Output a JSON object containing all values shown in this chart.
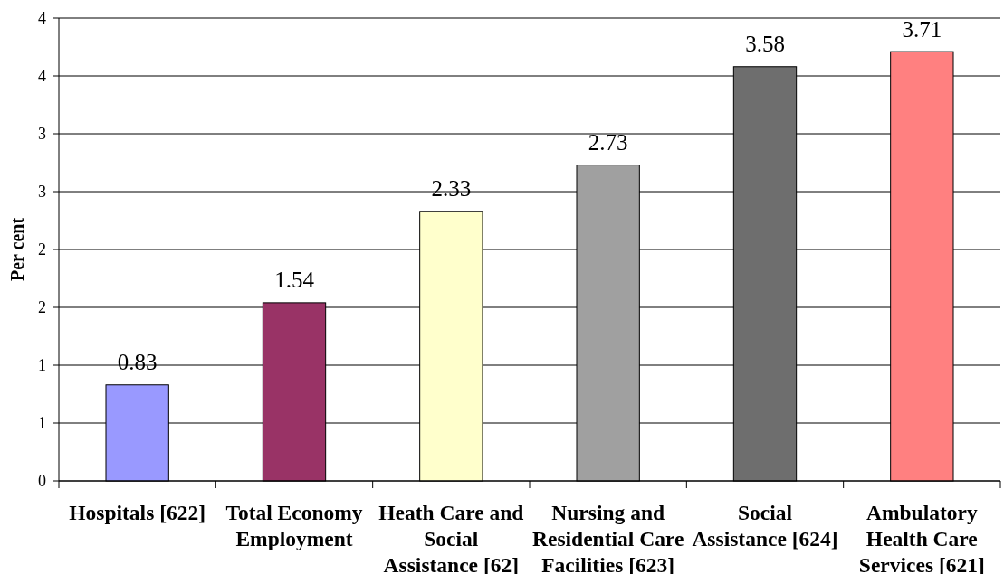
{
  "chart_data": {
    "type": "bar",
    "ylabel": "Per cent",
    "categories": [
      "Hospitals [622]",
      "Total Economy Employment",
      "Heath Care and Social Assistance [62]",
      "Nursing and Residential Care Facilities [623]",
      "Social Assistance [624]",
      "Ambulatory Health Care Services [621]"
    ],
    "values": [
      0.83,
      1.54,
      2.33,
      2.73,
      3.58,
      3.71
    ],
    "colors": [
      "#9999ff",
      "#993366",
      "#ffffcc",
      "#a0a0a0",
      "#6e6e6e",
      "#ff8080"
    ],
    "ylim": [
      0,
      4
    ],
    "yticks": [
      0,
      {
        "value": 0.5,
        "label": "1"
      },
      1,
      {
        "value": 1.5,
        "label": "2"
      },
      2,
      {
        "value": 2.5,
        "label": "3"
      },
      3,
      {
        "value": 3.5,
        "label": "4"
      },
      4
    ],
    "grid": "y",
    "data_labels": true
  }
}
